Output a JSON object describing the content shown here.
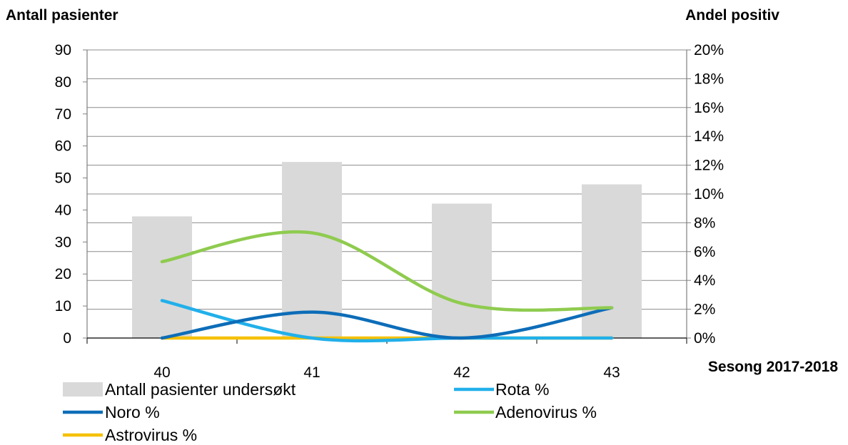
{
  "chart_data": {
    "type": "bar",
    "y_left_title": "Antall pasienter",
    "y_right_title": "Andel positiv",
    "x_title": "Sesong 2017-2018",
    "categories": [
      "40",
      "41",
      "42",
      "43"
    ],
    "y_left_ticks": [
      "0",
      "10",
      "20",
      "30",
      "40",
      "50",
      "60",
      "70",
      "80",
      "90"
    ],
    "y_right_ticks": [
      "0%",
      "2%",
      "4%",
      "6%",
      "8%",
      "10%",
      "12%",
      "14%",
      "16%",
      "18%",
      "20%"
    ],
    "ylim_left": [
      0,
      90
    ],
    "ylim_right": [
      0,
      20
    ],
    "grid": true,
    "legend_position": "bottom",
    "bars": {
      "name": "Antall pasienter undersøkt",
      "color": "#d9d9d9",
      "values": [
        38,
        55,
        42,
        48
      ]
    },
    "lines": [
      {
        "name": "Rota %",
        "color": "#21b0ea",
        "axis": "right",
        "values": [
          2.6,
          0,
          0,
          0
        ]
      },
      {
        "name": "Noro %",
        "color": "#0d6db8",
        "axis": "right",
        "values": [
          0,
          1.8,
          0,
          2.1
        ]
      },
      {
        "name": "Adenovirus %",
        "color": "#8fcb4f",
        "axis": "right",
        "values": [
          5.3,
          7.3,
          2.4,
          2.1
        ]
      },
      {
        "name": "Astrovirus %",
        "color": "#f5c000",
        "axis": "right",
        "values": [
          0,
          0,
          0,
          0
        ]
      }
    ]
  }
}
